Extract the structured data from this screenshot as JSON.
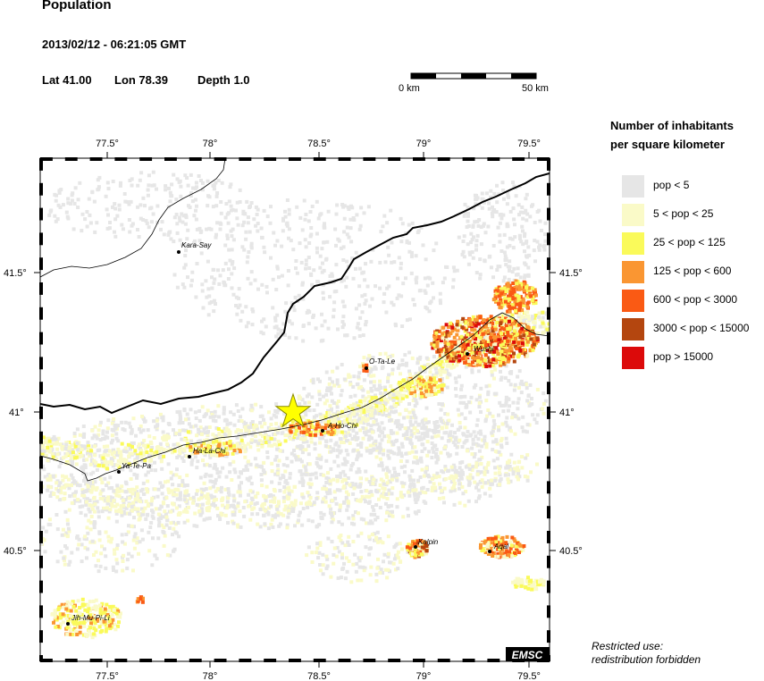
{
  "header": {
    "title": "Population",
    "datetime": "2013/02/12 - 06:21:05 GMT",
    "lat": "Lat 41.00",
    "lon": "Lon  78.39",
    "depth": "Depth  1.0"
  },
  "scalebar": {
    "left_label": "0 km",
    "right_label": "50 km"
  },
  "legend": {
    "title_line1": "Number of inhabitants",
    "title_line2": "per square kilometer",
    "items": [
      {
        "label": "pop < 5",
        "color": "#e6e6e6"
      },
      {
        "label": "5 < pop < 25",
        "color": "#fafac8"
      },
      {
        "label": "25 < pop < 125",
        "color": "#fafa5a"
      },
      {
        "label": "125 < pop < 600",
        "color": "#fa9632"
      },
      {
        "label": "600 < pop < 3000",
        "color": "#fa5a14"
      },
      {
        "label": "3000 < pop < 15000",
        "color": "#b4460f"
      },
      {
        "label": "pop > 15000",
        "color": "#dc0a0a"
      }
    ]
  },
  "notice": {
    "line1": "Restricted use:",
    "line2": "redistribution forbidden"
  },
  "map": {
    "x_ticks": [
      "77.5°",
      "78°",
      "78.5°",
      "79°",
      "79.5°"
    ],
    "y_ticks_left": [
      "41.5°",
      "41°",
      "40.5°"
    ],
    "y_ticks_right": [
      "41.5°",
      "41°",
      "40.5°"
    ],
    "places": [
      "Kara-Say",
      "O-Ta-Le",
      "Wushi",
      "A-Ho-Chi",
      "Ha-La-Chi",
      "Ya-Te-Pa",
      "Kalpin",
      "Aqal",
      "Jih-Mu-Pi-Li"
    ],
    "epicenter": {
      "lat": 41.0,
      "lon": 78.39,
      "color": "#ffff00"
    },
    "watermark": "EMSC"
  }
}
